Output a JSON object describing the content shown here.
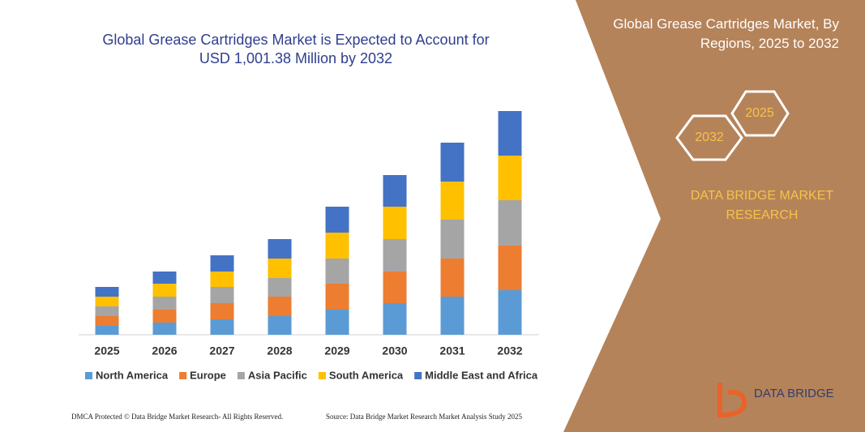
{
  "chart_data": {
    "type": "stacked-bar",
    "title": "Global Grease Cartridges Market is Expected to Account for USD 1,001.38 Million by 2032",
    "categories": [
      "2025",
      "2026",
      "2027",
      "2028",
      "2029",
      "2030",
      "2031",
      "2032"
    ],
    "series": [
      {
        "name": "North America",
        "color": "#5b9bd5",
        "values": [
          11,
          15,
          19,
          23,
          31,
          39,
          47,
          55
        ]
      },
      {
        "name": "Europe",
        "color": "#ed7d31",
        "values": [
          12,
          16,
          20,
          24,
          32,
          39,
          47,
          55
        ]
      },
      {
        "name": "Asia Pacific",
        "color": "#a5a5a5",
        "values": [
          12,
          16,
          20,
          23,
          31,
          40,
          48,
          56
        ]
      },
      {
        "name": "South America",
        "color": "#ffc000",
        "values": [
          12,
          16,
          19,
          24,
          32,
          40,
          47,
          55
        ]
      },
      {
        "name": "Middle East and Africa",
        "color": "#4472c4",
        "values": [
          12,
          15,
          20,
          24,
          32,
          39,
          48,
          55
        ]
      }
    ]
  },
  "panel": {
    "title": "Global Grease Cartridges Market, By Regions, 2025 to 2032",
    "hex_back": "2025",
    "hex_front": "2032",
    "brand": "DATA BRIDGE MARKET RESEARCH",
    "logo": "DATA BRIDGE"
  },
  "footer": {
    "left": "DMCA Protected © Data Bridge Market Research- All Rights Reserved.",
    "right": "Source: Data Bridge Market Research Market Analysis Study 2025"
  }
}
